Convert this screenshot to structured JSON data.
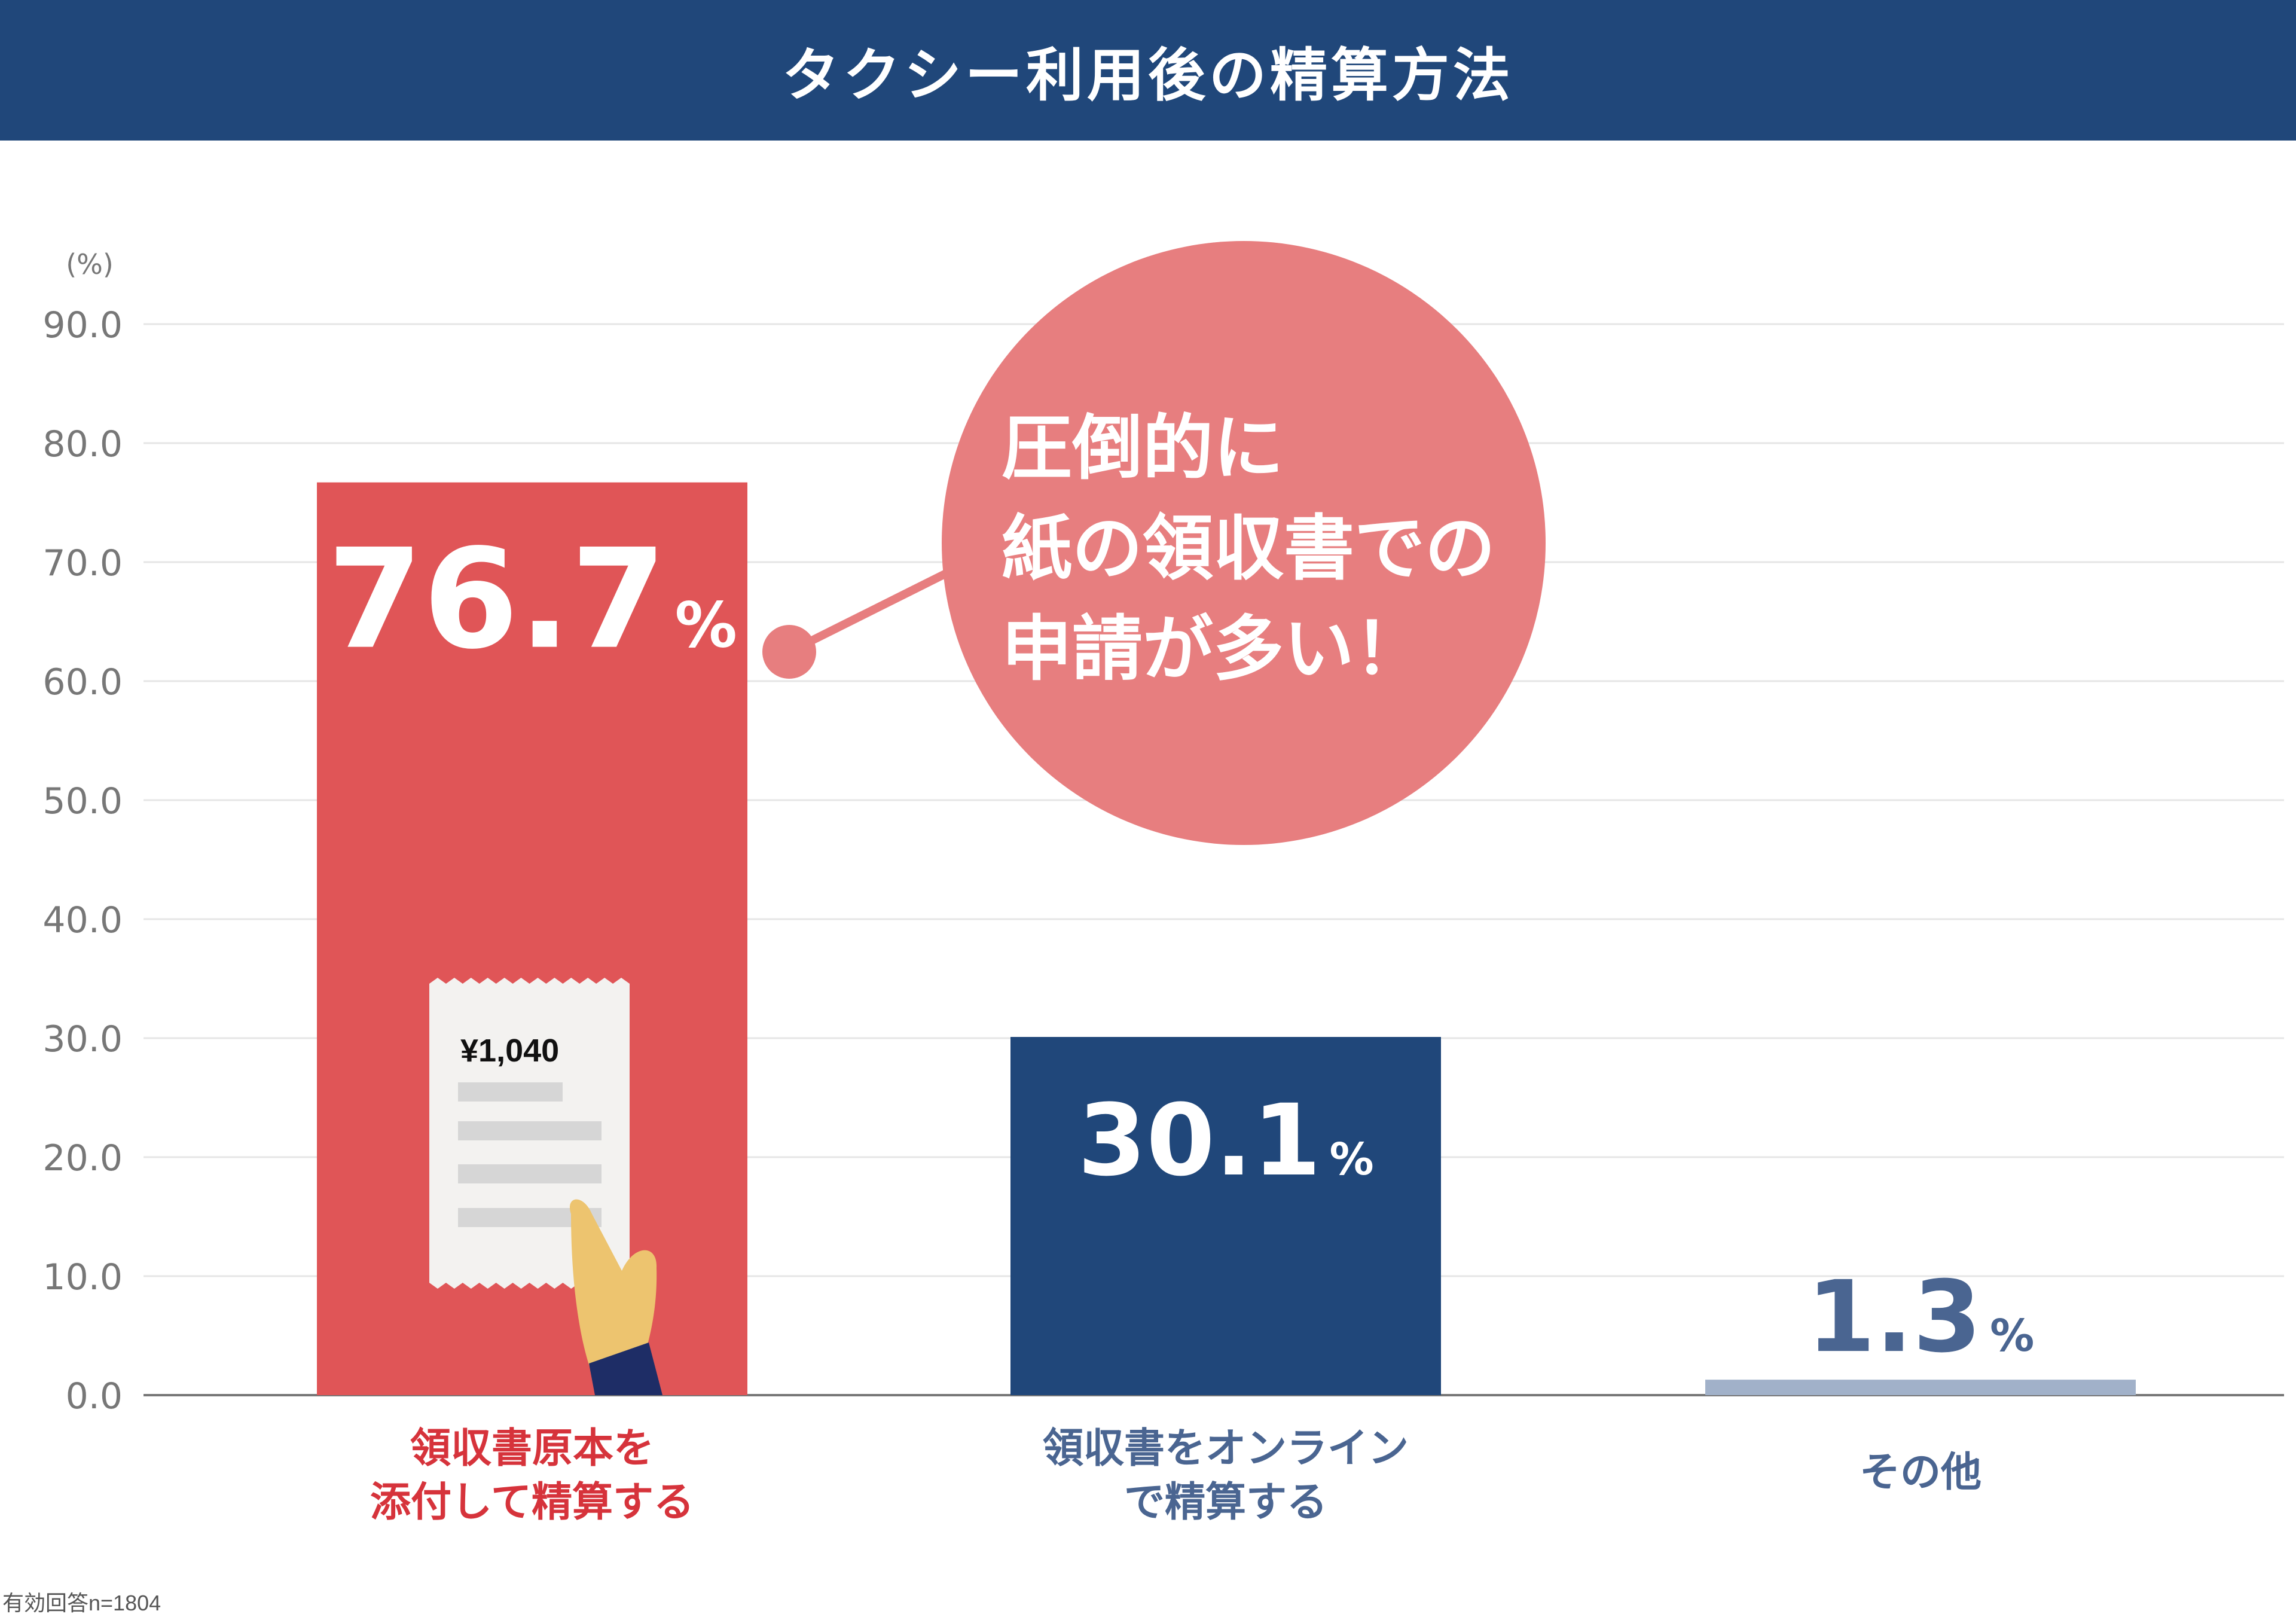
{
  "header": {
    "title": "タクシー利用後の精算方法"
  },
  "chart_data": {
    "type": "bar",
    "title": "",
    "unit_label": "(%)",
    "categories": [
      [
        "領収書原本を",
        "添付して精算する"
      ],
      [
        "領収書をオンライン",
        "で精算する"
      ],
      [
        "その他"
      ]
    ],
    "values": [
      76.7,
      30.1,
      1.3
    ],
    "value_suffix": "%",
    "ylim": [
      0,
      90
    ],
    "yticks": [
      "0.0",
      "10.0",
      "20.0",
      "30.0",
      "40.0",
      "50.0",
      "60.0",
      "70.0",
      "80.0",
      "90.0"
    ],
    "grid": true,
    "colors": {
      "bars": [
        "#e05557",
        "#20477a",
        "#a1b1c9"
      ],
      "labels": [
        "#d6333b",
        "#4a6591",
        "#4a6591"
      ],
      "value_text": [
        "#ffffff",
        "#ffffff",
        "#4a6591"
      ],
      "grid": "#e6e6e6",
      "axis": "#777777",
      "tick": "#777777",
      "callout": "#e77e7f"
    },
    "callout": {
      "lines": [
        "圧倒的に",
        "紙の領収書での",
        "申請が多い！"
      ],
      "target_category": 0
    },
    "receipt": {
      "amount": "¥1,040"
    }
  },
  "footnote": "有効回答n=1804"
}
